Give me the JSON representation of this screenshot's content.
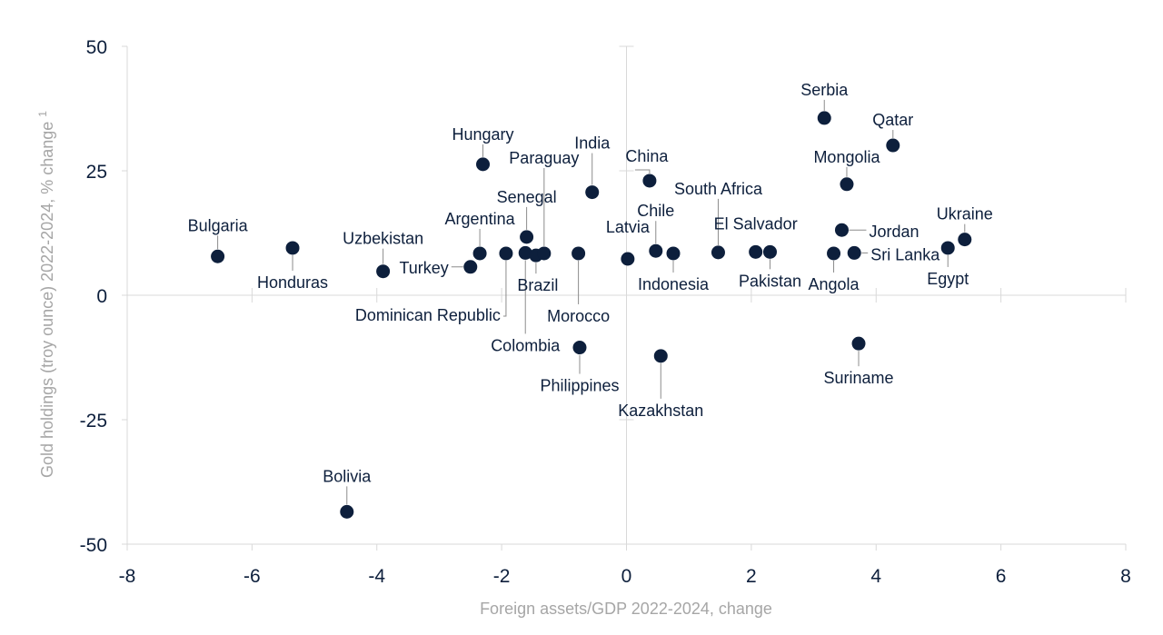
{
  "chart_data": {
    "type": "scatter",
    "xlabel": "Foreign assets/GDP 2022-2024, change",
    "ylabel": "Gold holdings (troy ounce) 2022-2024, % change",
    "ylabel_superscript": "1",
    "xlim": [
      -8,
      8
    ],
    "ylim": [
      -50,
      50
    ],
    "x_ticks": [
      -8,
      -6,
      -4,
      -2,
      0,
      2,
      4,
      6,
      8
    ],
    "y_ticks": [
      -50,
      -25,
      0,
      25,
      50
    ],
    "x_tick_labels": [
      "-8",
      "-6",
      "-4",
      "-2",
      "0",
      "2",
      "4",
      "6",
      "8"
    ],
    "y_tick_labels": [
      "-50",
      "-25",
      "0",
      "25",
      "50"
    ],
    "marker_color": "#0d1f3c",
    "leader_color": "#8c8c8c",
    "points": [
      {
        "label": "Bulgaria",
        "x": -6.55,
        "y": 7.8
      },
      {
        "label": "Honduras",
        "x": -5.35,
        "y": 9.5
      },
      {
        "label": "Uzbekistan",
        "x": -3.9,
        "y": 4.8
      },
      {
        "label": "Turkey",
        "x": -2.5,
        "y": 5.7
      },
      {
        "label": "Argentina",
        "x": -2.35,
        "y": 8.4
      },
      {
        "label": "Hungary",
        "x": -2.3,
        "y": 26.3
      },
      {
        "label": "Dominican Republic",
        "x": -1.93,
        "y": 8.4
      },
      {
        "label": "Senegal",
        "x": -1.6,
        "y": 11.7
      },
      {
        "label": "Colombia",
        "x": -1.62,
        "y": 8.5
      },
      {
        "label": "Brazil",
        "x": -1.45,
        "y": 8.0
      },
      {
        "label": "Paraguay",
        "x": -1.32,
        "y": 8.4
      },
      {
        "label": "India",
        "x": -0.55,
        "y": 20.7
      },
      {
        "label": "Morocco",
        "x": -0.77,
        "y": 8.4
      },
      {
        "label": "Philippines",
        "x": -0.75,
        "y": -10.5
      },
      {
        "label": "Latvia",
        "x": 0.02,
        "y": 7.3
      },
      {
        "label": "China",
        "x": 0.37,
        "y": 23.0
      },
      {
        "label": "Chile",
        "x": 0.47,
        "y": 8.9
      },
      {
        "label": "Kazakhstan",
        "x": 0.55,
        "y": -12.2
      },
      {
        "label": "Indonesia",
        "x": 0.75,
        "y": 8.4
      },
      {
        "label": "South Africa",
        "x": 1.47,
        "y": 8.6
      },
      {
        "label": "El Salvador",
        "x": 2.07,
        "y": 8.7
      },
      {
        "label": "Pakistan",
        "x": 2.3,
        "y": 8.7
      },
      {
        "label": "Serbia",
        "x": 3.17,
        "y": 35.6
      },
      {
        "label": "Angola",
        "x": 3.32,
        "y": 8.4
      },
      {
        "label": "Jordan",
        "x": 3.45,
        "y": 13.1
      },
      {
        "label": "Mongolia",
        "x": 3.53,
        "y": 22.3
      },
      {
        "label": "Sri Lanka",
        "x": 3.65,
        "y": 8.5
      },
      {
        "label": "Suriname",
        "x": 3.72,
        "y": -9.7
      },
      {
        "label": "Qatar",
        "x": 4.27,
        "y": 30.1
      },
      {
        "label": "Egypt",
        "x": 5.15,
        "y": 9.5
      },
      {
        "label": "Ukraine",
        "x": 5.42,
        "y": 11.2
      },
      {
        "label": "Bolivia",
        "x": -4.48,
        "y": -43.5
      }
    ]
  }
}
